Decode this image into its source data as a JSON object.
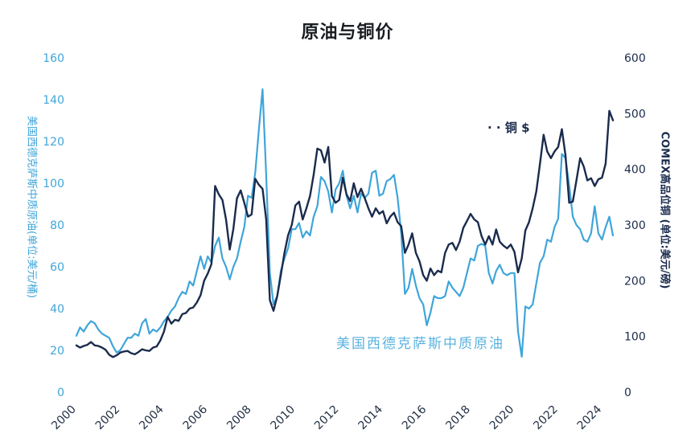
{
  "title": "原油与铜价",
  "left_axis": {
    "title": "美国西德克萨斯中质原油(单位:美元/桶)",
    "color": "#3fa5da",
    "range": [
      0,
      160
    ],
    "ticks": [
      0,
      20,
      40,
      60,
      80,
      100,
      120,
      140,
      160
    ]
  },
  "right_axis": {
    "title": "COMEX高品位铜 (单位:美元/磅)",
    "color": "#1a2b4c",
    "range": [
      0,
      600
    ],
    "ticks": [
      0,
      100,
      200,
      300,
      400,
      500,
      600
    ]
  },
  "x_axis": {
    "range": [
      2000,
      2024.5
    ],
    "color": "#233044",
    "ticks": [
      2000,
      2002,
      2004,
      2006,
      2008,
      2010,
      2012,
      2014,
      2016,
      2018,
      2020,
      2022,
      2024
    ]
  },
  "annotations": {
    "copper_label": "· · 铜  $",
    "oil_label": "美国西德克萨斯中质原油"
  },
  "chart_data": {
    "type": "line",
    "title": "原油与铜价",
    "x_start": 2000,
    "x_step": 0.1666667,
    "x_range": [
      2000,
      2024.5
    ],
    "legend_position": "inline-annotations",
    "grid": false,
    "series": [
      {
        "name": "美国西德克萨斯中质原油",
        "axis": "left",
        "unit": "美元/桶",
        "color": "#3fa5da",
        "width": 2.2,
        "values": [
          27,
          31,
          29,
          32,
          34,
          33,
          30,
          28,
          27,
          26,
          22,
          19,
          20,
          23,
          26,
          26,
          28,
          27,
          33,
          35,
          28,
          30,
          29,
          31,
          34,
          36,
          39,
          41,
          45,
          48,
          47,
          53,
          51,
          58,
          65,
          59,
          65,
          62,
          70,
          74,
          64,
          60,
          54,
          60,
          64,
          72,
          79,
          94,
          93,
          105,
          126,
          145,
          104,
          57,
          42,
          46,
          58,
          64,
          69,
          78,
          78,
          81,
          74,
          77,
          75,
          84,
          89,
          103,
          101,
          96,
          86,
          97,
          100,
          106,
          94,
          88,
          94,
          86,
          95,
          93,
          95,
          105,
          106,
          94,
          95,
          101,
          102,
          104,
          93,
          76,
          47,
          50,
          59,
          51,
          45,
          42,
          32,
          38,
          46,
          45,
          45,
          46,
          53,
          50,
          48,
          46,
          50,
          57,
          64,
          63,
          70,
          71,
          70,
          57,
          52,
          58,
          61,
          57,
          56,
          57,
          57,
          29,
          17,
          41,
          40,
          42,
          52,
          62,
          65,
          73,
          72,
          79,
          83,
          114,
          112,
          99,
          84,
          80,
          78,
          73,
          72,
          76,
          89,
          76,
          73,
          79,
          84,
          75
        ]
      },
      {
        "name": "铜",
        "axis": "right",
        "unit": "美元/磅",
        "color": "#1a2b4c",
        "width": 2.4,
        "values": [
          84,
          80,
          83,
          85,
          90,
          84,
          83,
          80,
          76,
          67,
          63,
          66,
          71,
          73,
          74,
          70,
          68,
          72,
          77,
          75,
          74,
          80,
          82,
          93,
          109,
          135,
          123,
          130,
          128,
          140,
          142,
          150,
          152,
          161,
          174,
          200,
          213,
          230,
          370,
          355,
          345,
          310,
          256,
          293,
          348,
          362,
          340,
          315,
          319,
          383,
          372,
          365,
          310,
          165,
          146,
          172,
          210,
          250,
          282,
          300,
          335,
          342,
          310,
          330,
          352,
          390,
          437,
          434,
          412,
          440,
          352,
          340,
          345,
          385,
          355,
          343,
          375,
          350,
          365,
          348,
          330,
          315,
          330,
          320,
          325,
          303,
          315,
          322,
          305,
          298,
          250,
          265,
          285,
          250,
          235,
          210,
          200,
          222,
          210,
          218,
          215,
          250,
          265,
          268,
          255,
          270,
          295,
          307,
          320,
          310,
          305,
          280,
          265,
          280,
          265,
          292,
          270,
          263,
          258,
          265,
          252,
          215,
          240,
          290,
          305,
          330,
          360,
          410,
          462,
          432,
          420,
          432,
          440,
          472,
          425,
          340,
          342,
          380,
          420,
          405,
          380,
          384,
          370,
          382,
          385,
          410,
          505,
          488
        ]
      }
    ]
  }
}
